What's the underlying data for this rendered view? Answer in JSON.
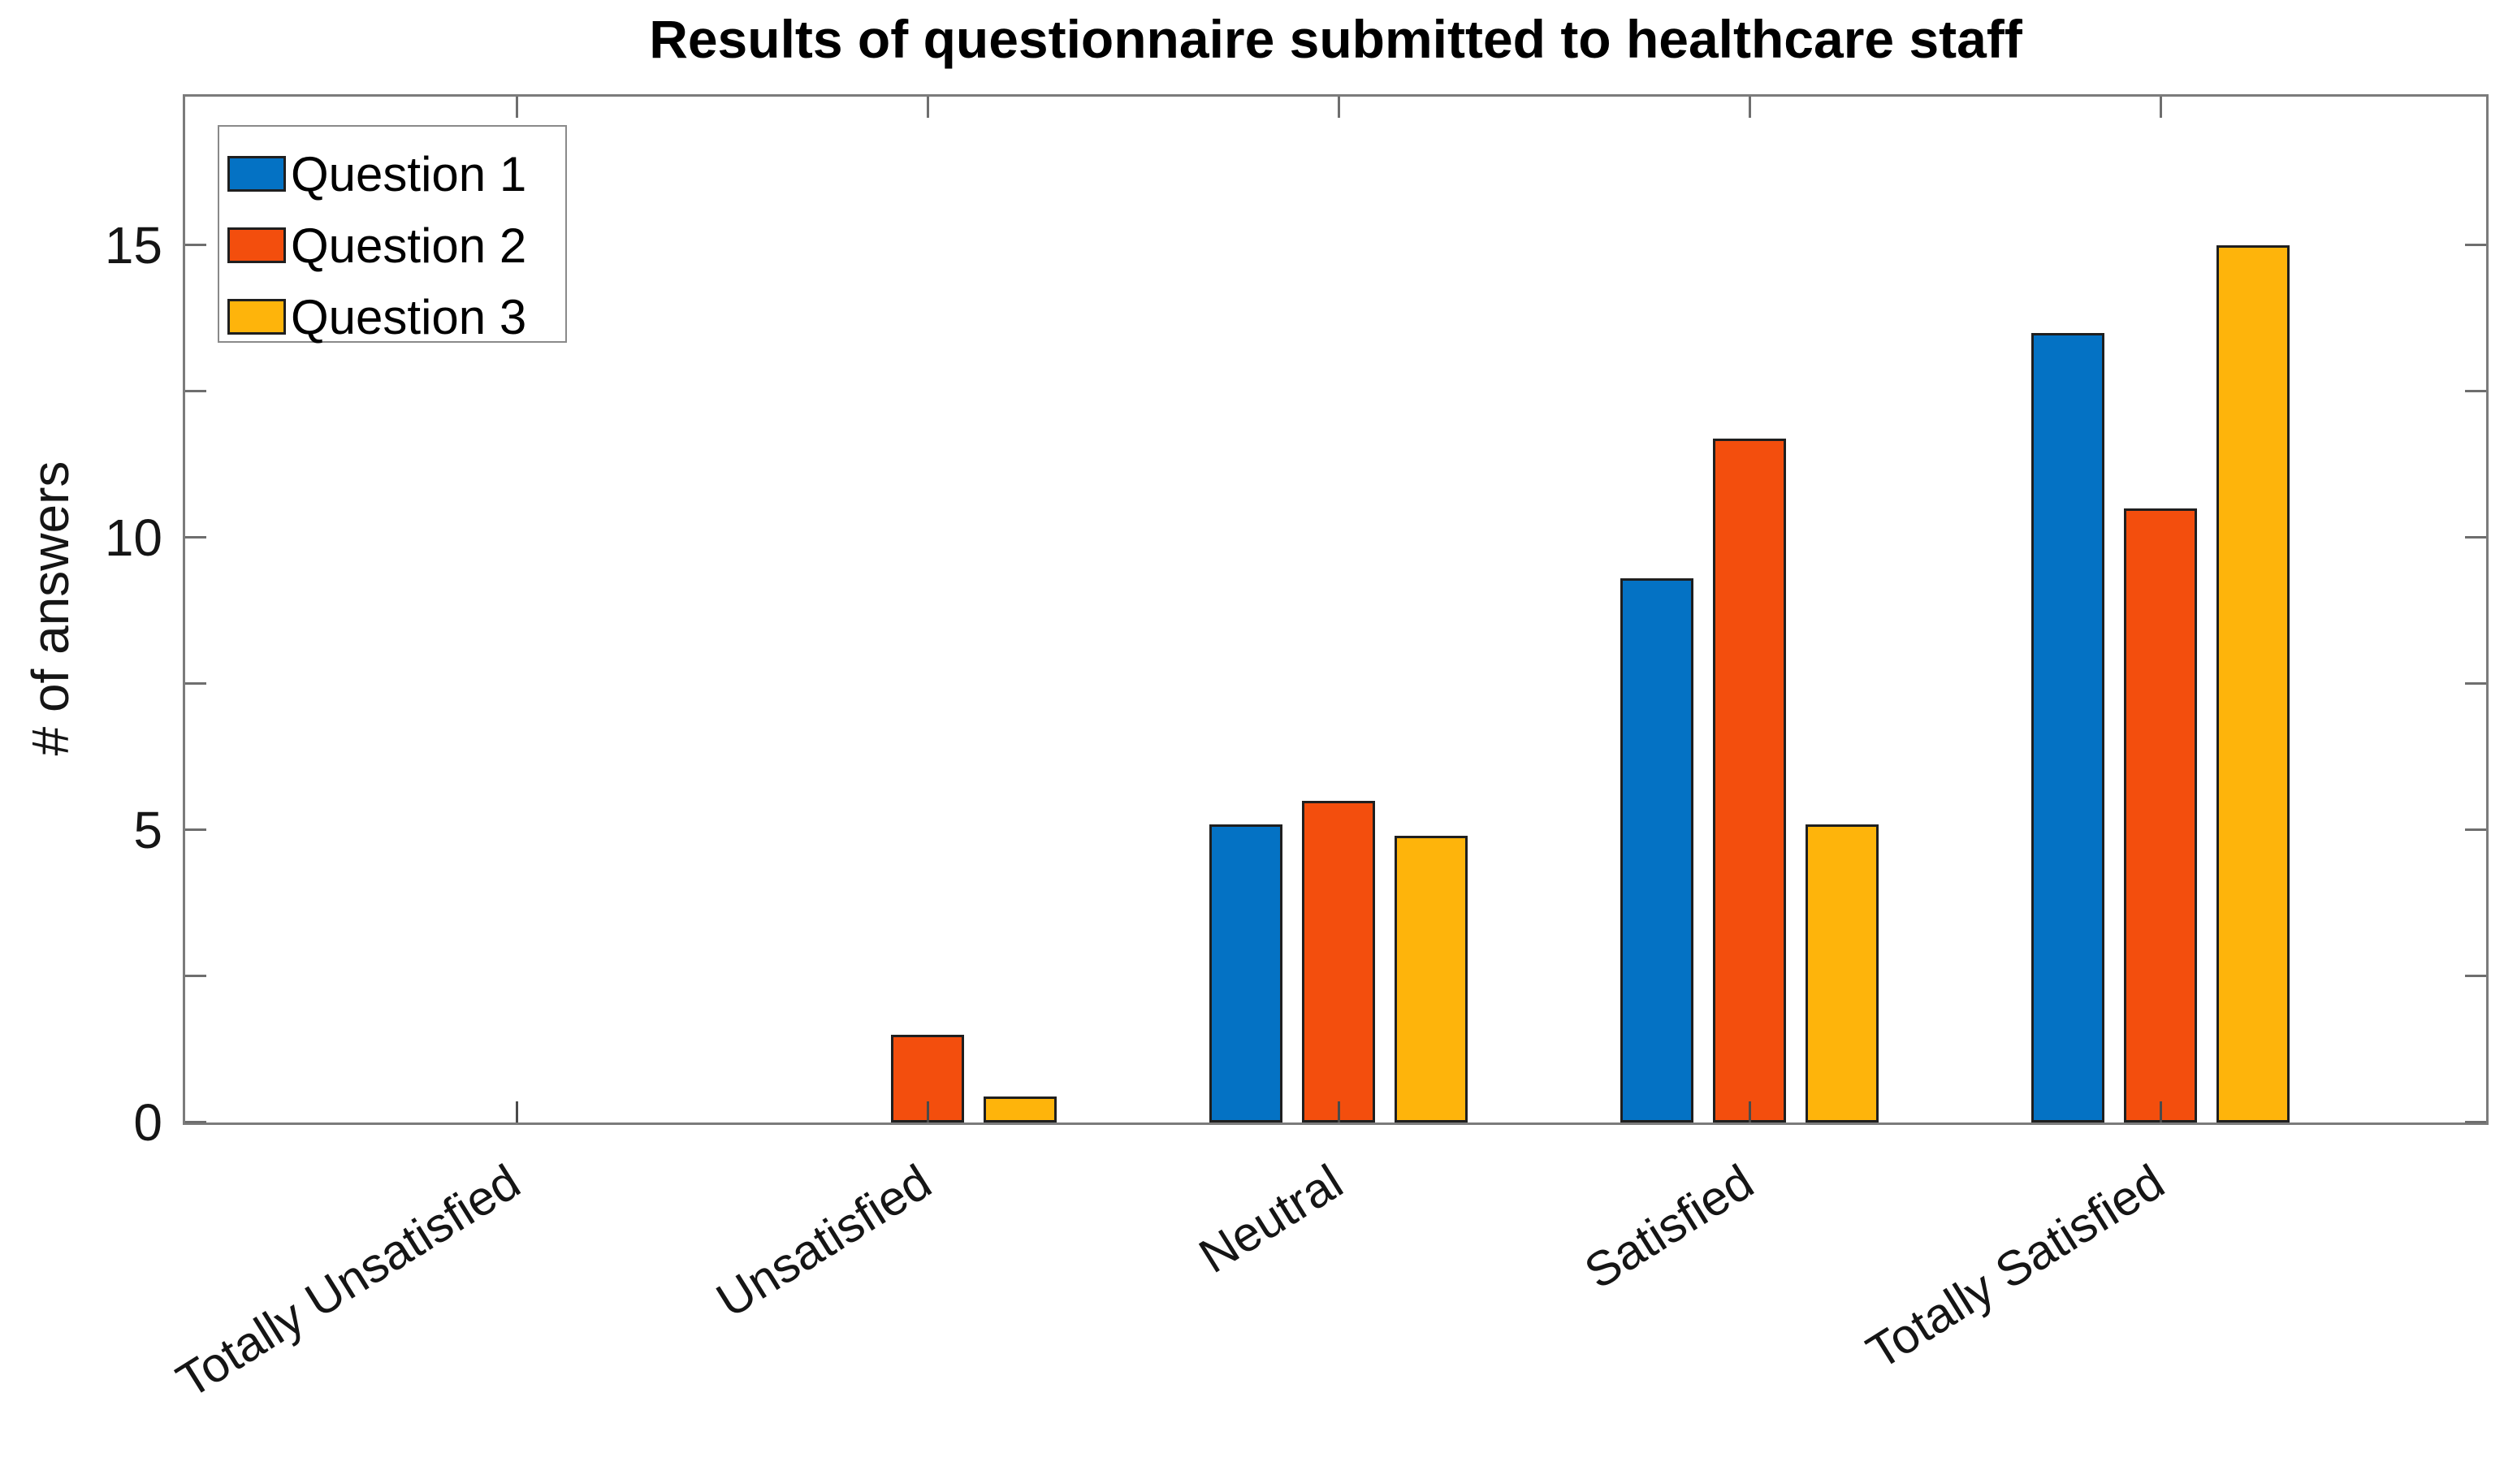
{
  "figure": {
    "title": "Results of questionnaire submitted to healthcare staff",
    "ylabel": "# of answers"
  },
  "legend": {
    "items": [
      {
        "label": "Question 1",
        "color": "#0472C4"
      },
      {
        "label": "Question 2",
        "color": "#F34E0D"
      },
      {
        "label": "Question 3",
        "color": "#FEB40B"
      }
    ],
    "position": "top-left"
  },
  "chart_data": {
    "type": "bar",
    "title": "Results of questionnaire submitted to healthcare staff",
    "xlabel": "",
    "ylabel": "# of answers",
    "categories": [
      "Totally Unsatisfied",
      "Unsatisfied",
      "Neutral",
      "Satisfied",
      "Totally Satisfied"
    ],
    "series": [
      {
        "name": "Question 1",
        "color": "#0472C4",
        "values": [
          0,
          0,
          5.1,
          9.3,
          13.5
        ]
      },
      {
        "name": "Question 2",
        "color": "#F34E0D",
        "values": [
          0,
          1.5,
          5.5,
          11.7,
          10.5
        ]
      },
      {
        "name": "Question 3",
        "color": "#FEB40B",
        "values": [
          0,
          0.45,
          4.9,
          5.1,
          15
        ]
      }
    ],
    "ylim": [
      0,
      17.5
    ],
    "yticks_labeled": [
      0,
      5,
      10,
      15
    ],
    "yticks_minor": [
      2.5,
      7.5,
      12.5
    ],
    "grid": false,
    "legend_position": "top-left",
    "bar_edge_color": "#1f1f1f",
    "axes_color": "#6e6e6e",
    "tick_direction": "in",
    "box": true,
    "xtick_label_rotation_deg": 32
  }
}
